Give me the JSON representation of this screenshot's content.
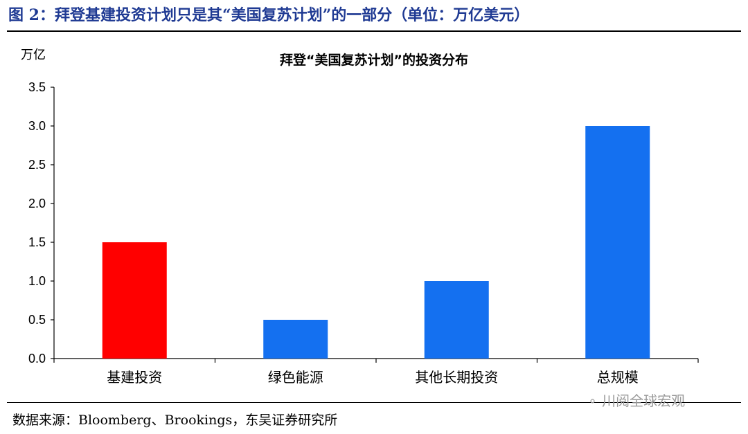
{
  "figure": {
    "title": "图 2：拜登基建投资计划只是其“美国复苏计划”的一部分（单位：万亿美元）",
    "source": "数据来源：Bloomberg、Brookings，东吴证券研究所",
    "watermark": "川阅全球宏观",
    "watermark_icon": "wechat-icon"
  },
  "chart_data": {
    "type": "bar",
    "title": "拜登“美国复苏计划”的投资分布",
    "ylabel": "万亿",
    "xlabel": "",
    "categories": [
      "基建投资",
      "绿色能源",
      "其他长期投资",
      "总规模"
    ],
    "values": [
      1.5,
      0.5,
      1.0,
      3.0
    ],
    "bar_colors": [
      "#ff0000",
      "#1470f0",
      "#1470f0",
      "#1470f0"
    ],
    "ylim": [
      0,
      3.5
    ],
    "yticks": [
      "0.0",
      "0.5",
      "1.0",
      "1.5",
      "2.0",
      "2.5",
      "3.0",
      "3.5"
    ],
    "grid": false,
    "legend": "none"
  }
}
